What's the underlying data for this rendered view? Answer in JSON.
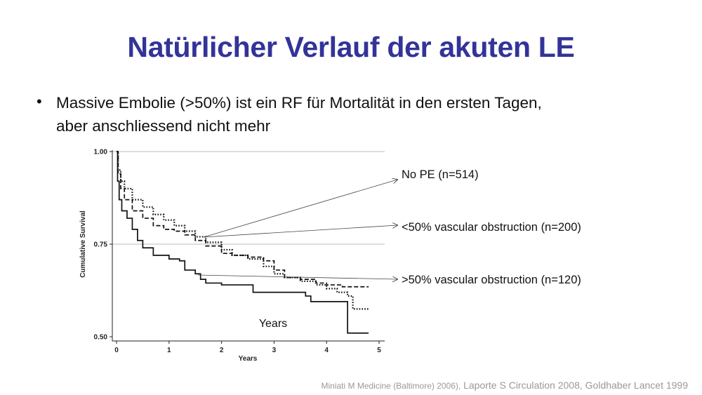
{
  "slide": {
    "title": "Natürlicher Verlauf der akuten LE",
    "bullet_line1": "Massive Embolie (>50%) ist ein RF für Mortalität in den ersten Tagen,",
    "bullet_line2": "aber anschliessend nicht mehr",
    "bullet_symbol": "•",
    "footer_part1": "Miniati M Medicine (Baltimore) 2006),",
    "footer_part2": " Laporte S Circulation 2008, Goldhaber Lancet 1999"
  },
  "colors": {
    "title": "#333399",
    "line": "#111111",
    "grid": "#bbbbbb"
  },
  "chart_data": {
    "type": "line",
    "title": "",
    "xlabel": "Years",
    "ylabel": "Cumulative Survival",
    "in_plot_label": "Years",
    "xlim": [
      0,
      5
    ],
    "ylim": [
      0.5,
      1.0
    ],
    "x_ticks": [
      "0",
      "1",
      "2",
      "3",
      "4",
      "5"
    ],
    "y_ticks": [
      "0.50",
      "0.75",
      "1.00"
    ],
    "grid": "horizontal at 0.75 and 1.00",
    "series": [
      {
        "name": "No PE (n=514)",
        "style": "dotted",
        "x": [
          0,
          0.03,
          0.08,
          0.15,
          0.3,
          0.5,
          0.7,
          0.9,
          1.1,
          1.3,
          1.5,
          1.7,
          2.0,
          2.2,
          2.5,
          2.8,
          3.0,
          3.2,
          3.5,
          3.8,
          4.0,
          4.2,
          4.4,
          4.5,
          4.8
        ],
        "y": [
          1.0,
          0.95,
          0.92,
          0.9,
          0.87,
          0.85,
          0.83,
          0.815,
          0.8,
          0.785,
          0.77,
          0.755,
          0.735,
          0.72,
          0.71,
          0.69,
          0.67,
          0.66,
          0.65,
          0.64,
          0.63,
          0.62,
          0.61,
          0.575,
          0.575
        ]
      },
      {
        "name": "<50% vascular obstruction (n=200)",
        "style": "dashed",
        "x": [
          0,
          0.03,
          0.08,
          0.15,
          0.3,
          0.5,
          0.7,
          0.9,
          1.1,
          1.3,
          1.5,
          1.7,
          2.0,
          2.2,
          2.5,
          2.8,
          3.0,
          3.2,
          3.5,
          3.8,
          4.0,
          4.3,
          4.8
        ],
        "y": [
          1.0,
          0.94,
          0.9,
          0.87,
          0.84,
          0.82,
          0.8,
          0.79,
          0.785,
          0.775,
          0.76,
          0.745,
          0.725,
          0.72,
          0.715,
          0.705,
          0.68,
          0.66,
          0.655,
          0.645,
          0.64,
          0.635,
          0.635
        ]
      },
      {
        "name": ">50% vascular obstruction (n=120)",
        "style": "solid",
        "x": [
          0,
          0.02,
          0.05,
          0.1,
          0.2,
          0.3,
          0.4,
          0.5,
          0.7,
          1.0,
          1.2,
          1.3,
          1.5,
          1.6,
          1.7,
          2.0,
          2.5,
          2.6,
          3.0,
          3.6,
          3.7,
          4.3,
          4.4,
          4.8
        ],
        "y": [
          1.0,
          0.92,
          0.87,
          0.84,
          0.82,
          0.79,
          0.76,
          0.74,
          0.72,
          0.71,
          0.705,
          0.68,
          0.67,
          0.655,
          0.645,
          0.64,
          0.64,
          0.62,
          0.62,
          0.61,
          0.595,
          0.595,
          0.51,
          0.51
        ]
      }
    ],
    "annotations": [
      "No PE (n=514)",
      "<50% vascular obstruction (n=200)",
      ">50% vascular obstruction (n=120)"
    ]
  }
}
